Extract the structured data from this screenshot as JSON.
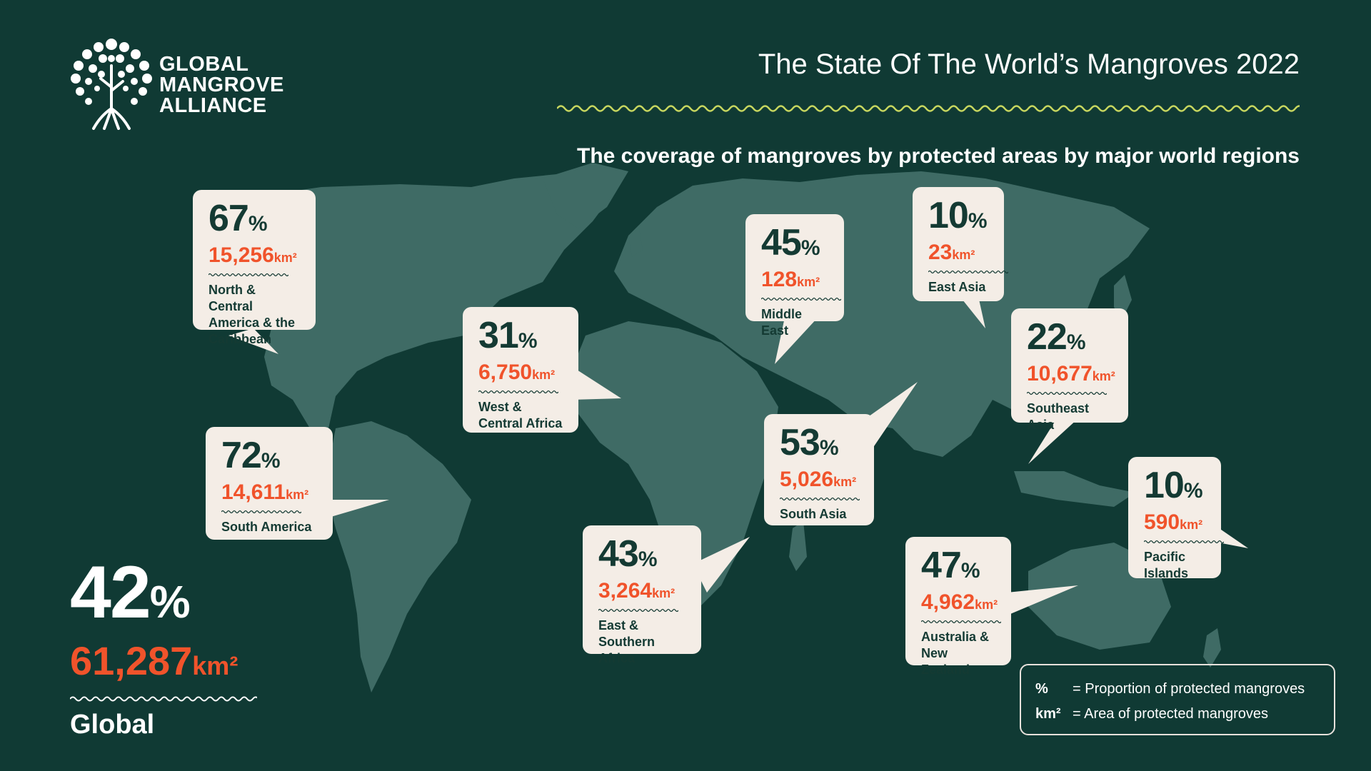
{
  "logo": {
    "line1": "GLOBAL",
    "line2": "MANGROVE",
    "line3": "ALLIANCE"
  },
  "title": "The State Of The World’s Mangroves 2022",
  "subtitle": "The coverage of mangroves by protected areas by major world regions",
  "colors": {
    "background": "#103a34",
    "map": "#3f6b65",
    "card": "#f4ede6",
    "accent": "#f0532b",
    "dark_text": "#143a33"
  },
  "chart_data": {
    "type": "map",
    "title": "The coverage of mangroves by protected areas by major world regions",
    "series": [
      {
        "name": "Proportion of protected mangroves",
        "unit": "%"
      },
      {
        "name": "Area of protected mangroves",
        "unit": "km²"
      }
    ],
    "regions": [
      {
        "name": "North & Central America & the Caribbean",
        "percent": 67,
        "percent_unit": "%",
        "area": "15,256",
        "area_unit": "km²",
        "lines": [
          "North & Central",
          "America & the",
          "Caribbean"
        ]
      },
      {
        "name": "West & Central Africa",
        "percent": 31,
        "percent_unit": "%",
        "area": "6,750",
        "area_unit": "km²",
        "lines": [
          "West &",
          "Central Africa"
        ]
      },
      {
        "name": "Middle East",
        "percent": 45,
        "percent_unit": "%",
        "area": "128",
        "area_unit": "km²",
        "lines": [
          "Middle East"
        ]
      },
      {
        "name": "East Asia",
        "percent": 10,
        "percent_unit": "%",
        "area": "23",
        "area_unit": "km²",
        "lines": [
          "East Asia"
        ]
      },
      {
        "name": "Southeast Asia",
        "percent": 22,
        "percent_unit": "%",
        "area": "10,677",
        "area_unit": "km²",
        "lines": [
          "Southeast Asia"
        ]
      },
      {
        "name": "South America",
        "percent": 72,
        "percent_unit": "%",
        "area": "14,611",
        "area_unit": "km²",
        "lines": [
          "South America"
        ]
      },
      {
        "name": "South Asia",
        "percent": 53,
        "percent_unit": "%",
        "area": "5,026",
        "area_unit": "km²",
        "lines": [
          "South Asia"
        ]
      },
      {
        "name": "East & Southern Africa",
        "percent": 43,
        "percent_unit": "%",
        "area": "3,264",
        "area_unit": "km²",
        "lines": [
          "East &",
          "Southern Africa"
        ]
      },
      {
        "name": "Australia & New Zealand",
        "percent": 47,
        "percent_unit": "%",
        "area": "4,962",
        "area_unit": "km²",
        "lines": [
          "Australia &",
          "New Zealand"
        ]
      },
      {
        "name": "Pacific Islands",
        "percent": 10,
        "percent_unit": "%",
        "area": "590",
        "area_unit": "km²",
        "lines": [
          "Pacific",
          "Islands"
        ]
      }
    ],
    "global": {
      "label": "Global",
      "percent": 42,
      "percent_unit": "%",
      "area": "61,287",
      "area_unit": "km²"
    }
  },
  "legend": [
    {
      "key": "%",
      "text": "= Proportion of protected mangroves"
    },
    {
      "key": "km²",
      "text": "= Area of protected mangroves"
    }
  ]
}
